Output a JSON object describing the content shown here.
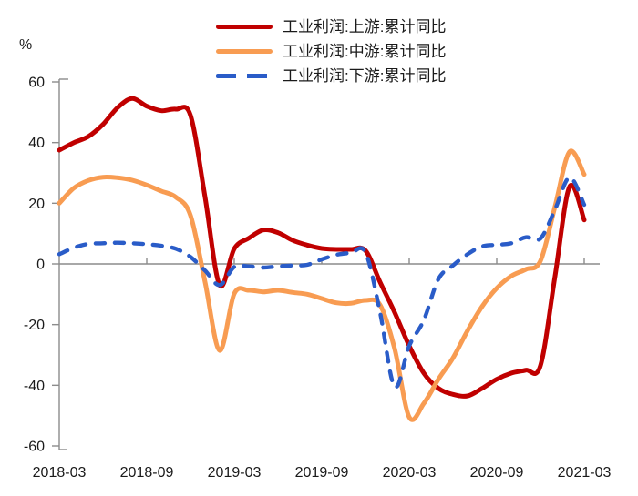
{
  "chart_data": {
    "type": "line",
    "title": "",
    "y_unit_label": "%",
    "x_months": [
      "2018-03",
      "2018-04",
      "2018-05",
      "2018-06",
      "2018-07",
      "2018-08",
      "2018-09",
      "2018-10",
      "2018-11",
      "2018-12",
      "2019-01",
      "2019-02",
      "2019-03",
      "2019-04",
      "2019-05",
      "2019-06",
      "2019-07",
      "2019-08",
      "2019-09",
      "2019-10",
      "2019-11",
      "2019-12",
      "2020-01",
      "2020-02",
      "2020-03",
      "2020-04",
      "2020-05",
      "2020-06",
      "2020-07",
      "2020-08",
      "2020-09",
      "2020-10",
      "2020-11",
      "2020-12",
      "2021-01",
      "2021-02",
      "2021-03"
    ],
    "x_tick_labels": [
      "2018-03",
      "2018-09",
      "2019-03",
      "2019-09",
      "2020-03",
      "2020-09",
      "2021-03"
    ],
    "x_tick_month_indices": [
      0,
      6,
      12,
      18,
      24,
      30,
      36
    ],
    "y_ticks": [
      60,
      40,
      20,
      0,
      -20,
      -40,
      -60
    ],
    "ylim": [
      -60,
      60
    ],
    "grid": "zero-line-only",
    "legend_position": "top-center",
    "background_color": "#FFFFFF",
    "axis_color": "#8C8C8C",
    "text_color": "#1A1A1A",
    "series": [
      {
        "name": "工业利润:上游:累计同比",
        "color": "#C00000",
        "line_style": "solid",
        "values": [
          37.5,
          40,
          42,
          46,
          51.5,
          54.5,
          52,
          50.5,
          51,
          49,
          22,
          -7,
          5,
          8.5,
          11.2,
          10.3,
          7.8,
          6.2,
          5.1,
          4.8,
          4.8,
          4.4,
          -6,
          -16,
          -27,
          -36,
          -41,
          -43,
          -43.5,
          -41,
          -38,
          -36,
          -35,
          -33.5,
          -4,
          25.5,
          14.5
        ]
      },
      {
        "name": "工业利润:中游:累计同比",
        "color": "#F89C52",
        "line_style": "solid",
        "values": [
          20,
          25,
          27.5,
          28.6,
          28.4,
          27.6,
          26,
          24,
          22,
          16,
          -6,
          -28.5,
          -9.8,
          -8.7,
          -9.2,
          -8.7,
          -9.4,
          -10,
          -11.4,
          -12.8,
          -13,
          -12,
          -13.5,
          -28,
          -50.5,
          -46,
          -38,
          -31,
          -22,
          -14,
          -8,
          -4,
          -1.8,
          1,
          19,
          37,
          29.5
        ]
      },
      {
        "name": "工业利润:下游:累计同比",
        "color": "#2A5CC8",
        "line_style": "dashed",
        "values": [
          3.2,
          5.3,
          6.6,
          6.8,
          7,
          6.8,
          6.5,
          6,
          5,
          2.3,
          -2.2,
          -7,
          -1,
          -0.8,
          -1.2,
          -0.8,
          -0.5,
          -0.3,
          1.5,
          3,
          3.6,
          3.8,
          -16,
          -40.5,
          -27,
          -18.5,
          -5,
          -0.5,
          3.2,
          5.8,
          6.3,
          6.8,
          8.8,
          8.4,
          18,
          28.5,
          19.5
        ]
      }
    ]
  }
}
